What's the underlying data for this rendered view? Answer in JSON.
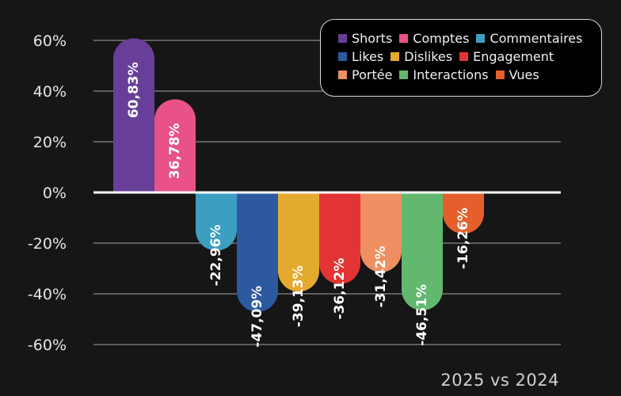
{
  "chart_data": {
    "type": "bar",
    "title": "",
    "subtitle": "2025 vs 2024",
    "ylim": [
      -60,
      60
    ],
    "yticks": [
      60,
      40,
      20,
      0,
      -20,
      -40,
      -60
    ],
    "ytick_labels": [
      "60%",
      "40%",
      "20%",
      "0%",
      "-20%",
      "-40%",
      "-60%"
    ],
    "grid": true,
    "legend_position": "top-right",
    "categories": [
      "Shorts",
      "Comptes",
      "Commentaires",
      "Likes",
      "Dislikes",
      "Engagement",
      "Portée",
      "Interactions",
      "Vues"
    ],
    "values": [
      60.83,
      36.78,
      -22.96,
      -47.09,
      -39.13,
      -36.12,
      -31.42,
      -46.51,
      -16.26
    ],
    "value_labels": [
      "60,83%",
      "36,78%",
      "-22,96%",
      "-47,09%",
      "-39,13%",
      "-36,12%",
      "-31,42%",
      "-46,51%",
      "-16,26%"
    ],
    "colors": [
      "#673f99",
      "#e8518a",
      "#3c9fc2",
      "#2d59a0",
      "#e4aa2f",
      "#e23434",
      "#ef8f62",
      "#62b86f",
      "#e55f2c"
    ],
    "legend_rows": [
      [
        0,
        1,
        2
      ],
      [
        3,
        4,
        5
      ],
      [
        6,
        7,
        8
      ]
    ]
  }
}
